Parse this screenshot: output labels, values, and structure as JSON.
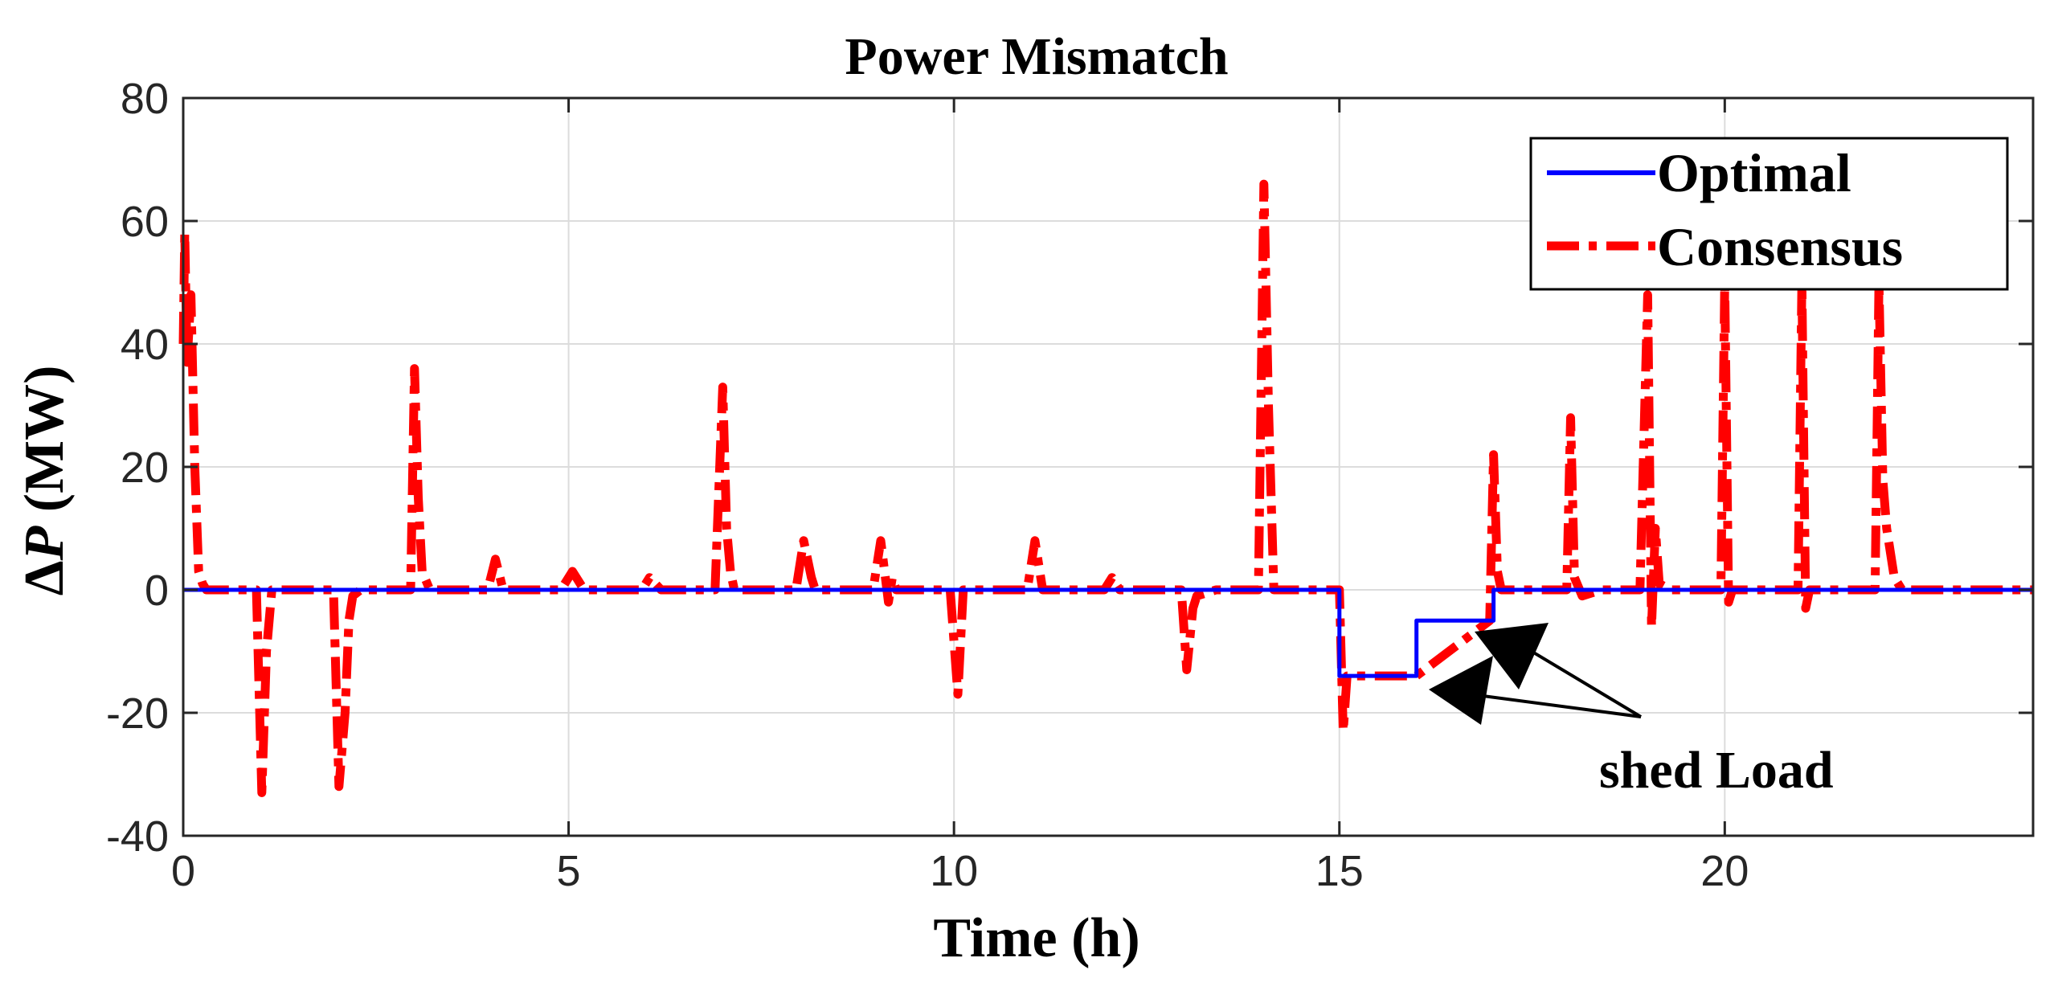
{
  "chart_data": {
    "type": "line",
    "title": "Power Mismatch",
    "xlabel": "Time (h)",
    "ylabel_delta": "Δ",
    "ylabel_var": "P",
    "ylabel_unit": " (MW)",
    "xlim": [
      0,
      24
    ],
    "ylim": [
      -40,
      80
    ],
    "xticks": [
      0,
      5,
      10,
      15,
      20
    ],
    "yticks": [
      -40,
      -20,
      0,
      20,
      40,
      60,
      80
    ],
    "grid": true,
    "legend_position": "top-right",
    "annotation": "shed Load",
    "series": [
      {
        "name": "Optimal",
        "color": "#0000ff",
        "style": "solid",
        "x": [
          0,
          15,
          15,
          16,
          16,
          17,
          17,
          24
        ],
        "y": [
          0,
          0,
          -14,
          -14,
          -5,
          -5,
          0,
          0
        ]
      },
      {
        "name": "Consensus",
        "color": "#ff0000",
        "style": "dashdot",
        "x": [
          0,
          0.02,
          0.05,
          0.1,
          0.15,
          0.2,
          0.25,
          0.3,
          0.95,
          1.02,
          1.08,
          1.15,
          1.95,
          2.02,
          2.1,
          2.15,
          2.2,
          2.3,
          2.95,
          3.0,
          3.05,
          3.1,
          3.2,
          3.95,
          4.05,
          4.15,
          4.9,
          5.05,
          5.2,
          5.95,
          6.05,
          6.2,
          6.9,
          7.0,
          7.05,
          7.1,
          7.15,
          7.95,
          8.05,
          8.15,
          8.2,
          8.95,
          9.05,
          9.15,
          9.2,
          9.25,
          9.95,
          10.05,
          10.12,
          10.95,
          11.05,
          11.15,
          11.95,
          12.05,
          12.15,
          12.95,
          13.02,
          13.1,
          13.15,
          13.4,
          13.95,
          14.02,
          14.08,
          14.15,
          14.9,
          15.0,
          15.05,
          15.1,
          16.0,
          16.95,
          17.0,
          17.05,
          17.1,
          17.95,
          18.0,
          18.05,
          18.15,
          18.4,
          18.9,
          19.0,
          19.05,
          19.1,
          19.15,
          19.3,
          19.95,
          20.0,
          20.05,
          20.1,
          20.95,
          21.0,
          21.05,
          21.1,
          21.95,
          22.0,
          22.05,
          22.1,
          22.2,
          22.3,
          24
        ],
        "y": [
          40,
          58,
          37,
          48,
          20,
          3,
          1,
          0,
          0,
          -33,
          -10,
          0,
          0,
          -32,
          -20,
          -5,
          -1,
          0,
          0,
          36,
          15,
          3,
          0,
          0,
          5,
          0,
          0,
          3,
          0,
          0,
          2,
          0,
          0,
          33,
          10,
          3,
          0,
          0,
          8,
          2,
          0,
          0,
          8,
          -2,
          2,
          0,
          0,
          -17,
          0,
          0,
          8,
          0,
          0,
          2,
          0,
          0,
          -13,
          -3,
          -1,
          0,
          0,
          66,
          30,
          0,
          0,
          0,
          -23,
          -14,
          -14,
          -5,
          22,
          3,
          0,
          0,
          28,
          2,
          -1,
          0,
          0,
          48,
          -6,
          10,
          1,
          0,
          0,
          50,
          -2,
          0,
          0,
          50,
          -3,
          0,
          0,
          50,
          18,
          10,
          2,
          0,
          0
        ]
      }
    ]
  }
}
